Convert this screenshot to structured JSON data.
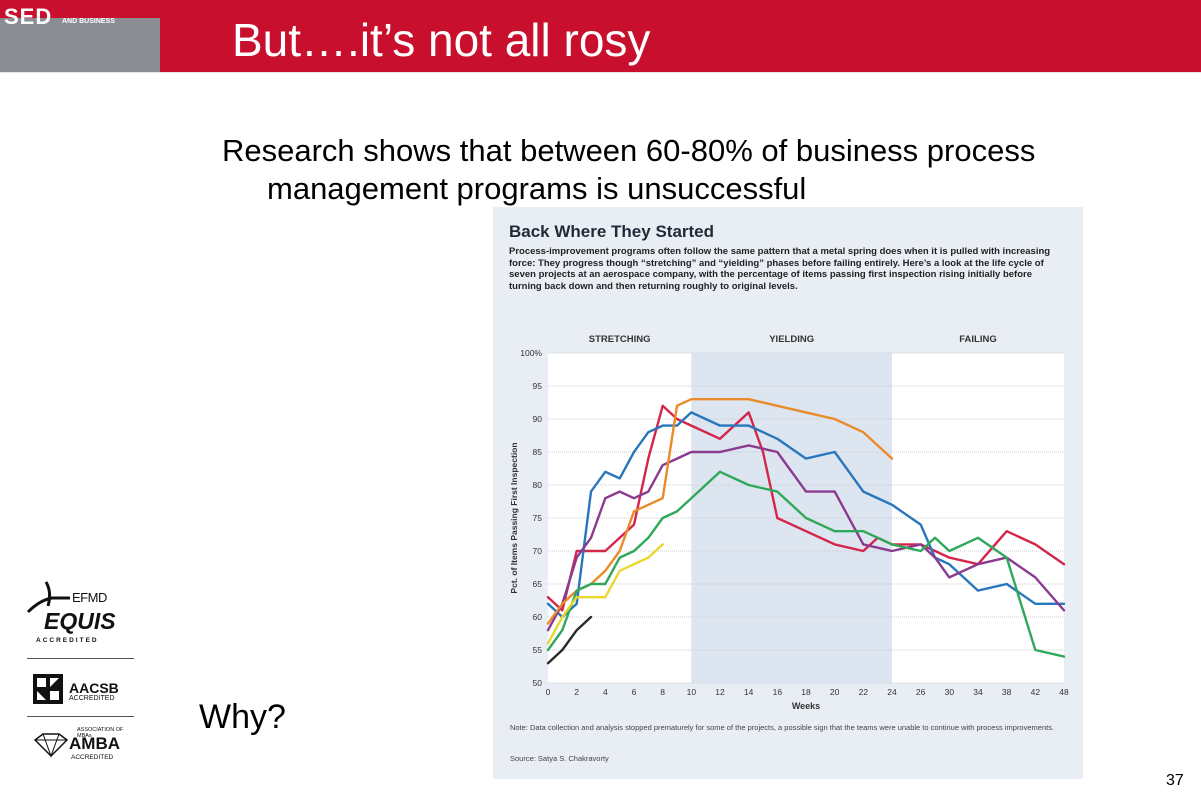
{
  "header": {
    "logo_text": "SED",
    "logo_subtext": "AND BUSINESS",
    "title": "But….it’s not all rosy"
  },
  "body": {
    "line1": "Research shows that between 60-80% of business process",
    "line2": "management programs is unsuccessful",
    "why": "Why?"
  },
  "page_number": "37",
  "accreditations": {
    "efmd_brand": "EFMD",
    "equis": "EQUIS",
    "equis_accredited": "ACCREDITED",
    "aacsb": "AACSB",
    "aacsb_accredited": "ACCREDITED",
    "amba_association": "ASSOCIATION OF MBAs",
    "amba": "AMBA",
    "amba_accredited": "ACCREDITED"
  },
  "chart_data": {
    "type": "line",
    "title": "Back Where They Started",
    "subtitle": "Process-improvement programs often follow the same pattern that a metal spring does when it is pulled with increasing force: They progress though “stretching” and “yielding” phases before failing entirely. Here’s a look at the life cycle of seven projects at an aerospace company, with the percentage of items passing first inspection rising initially before turning back down and then returning roughly to original levels.",
    "xlabel": "Weeks",
    "ylabel": "Pct. of Items Passing First Inspection",
    "x_ticks": [
      0,
      2,
      4,
      6,
      8,
      10,
      12,
      14,
      16,
      18,
      20,
      22,
      24,
      26,
      30,
      34,
      38,
      42,
      48
    ],
    "y_ticks": [
      50,
      55,
      60,
      65,
      70,
      75,
      80,
      85,
      90,
      95,
      100
    ],
    "y_tick_labels": [
      "50",
      "55",
      "60",
      "65",
      "70",
      "75",
      "80",
      "85",
      "90",
      "95",
      "100%"
    ],
    "ylim": [
      50,
      100
    ],
    "phases": [
      {
        "label": "STRETCHING",
        "x_start": 0,
        "x_end": 10,
        "shaded": false
      },
      {
        "label": "YIELDING",
        "x_start": 10,
        "x_end": 24,
        "shaded": true
      },
      {
        "label": "FAILING",
        "x_start": 24,
        "x_end": 48,
        "shaded": false
      }
    ],
    "grid": true,
    "series": [
      {
        "color": "#d4254b",
        "x": [
          0,
          1,
          2,
          3,
          4,
          5,
          6,
          7,
          8,
          9,
          10,
          12,
          14,
          15,
          16,
          18,
          20,
          22,
          23,
          24,
          26,
          30,
          34,
          38,
          42,
          48
        ],
        "y": [
          63,
          61,
          70,
          70,
          70,
          72,
          74,
          84,
          92,
          90,
          89,
          87,
          91,
          85,
          75,
          73,
          71,
          70,
          72,
          71,
          71,
          69,
          68,
          73,
          71,
          68
        ]
      },
      {
        "color": "#2876bd",
        "x": [
          0,
          1,
          2,
          3,
          4,
          5,
          6,
          7,
          8,
          9,
          10,
          12,
          14,
          16,
          18,
          20,
          22,
          24,
          26,
          28,
          30,
          34,
          38,
          42,
          48
        ],
        "y": [
          62,
          60,
          62,
          79,
          82,
          81,
          85,
          88,
          89,
          89,
          91,
          89,
          89,
          87,
          84,
          85,
          79,
          77,
          74,
          69,
          68,
          64,
          65,
          62,
          62
        ]
      },
      {
        "color": "#8a3a8f",
        "x": [
          0,
          1,
          2,
          3,
          4,
          5,
          6,
          7,
          8,
          9,
          10,
          12,
          14,
          16,
          18,
          20,
          22,
          24,
          26,
          28,
          30,
          34,
          38,
          42,
          48
        ],
        "y": [
          58,
          62,
          69,
          72,
          78,
          79,
          78,
          79,
          83,
          84,
          85,
          85,
          86,
          85,
          79,
          79,
          71,
          70,
          71,
          69,
          66,
          68,
          69,
          66,
          61
        ]
      },
      {
        "color": "#e98a2b",
        "x": [
          0,
          1,
          2,
          3,
          4,
          5,
          6,
          7,
          8,
          9,
          10,
          12,
          14,
          16,
          18,
          20,
          22,
          24
        ],
        "y": [
          59,
          62,
          64,
          65,
          67,
          70,
          76,
          77,
          78,
          92,
          93,
          93,
          93,
          92,
          91,
          90,
          88,
          84
        ]
      },
      {
        "color": "#2fa85a",
        "x": [
          0,
          1,
          2,
          3,
          4,
          5,
          6,
          7,
          8,
          9,
          10,
          12,
          14,
          16,
          18,
          20,
          22,
          24,
          26,
          28,
          30,
          34,
          38,
          42,
          48
        ],
        "y": [
          55,
          58,
          64,
          65,
          65,
          69,
          70,
          72,
          75,
          76,
          78,
          82,
          80,
          79,
          75,
          73,
          73,
          71,
          70,
          72,
          70,
          72,
          69,
          55,
          54
        ]
      },
      {
        "color": "#e8d82e",
        "x": [
          0,
          1,
          2,
          3,
          4,
          5,
          6,
          7,
          8
        ],
        "y": [
          56,
          60,
          63,
          63,
          63,
          67,
          68,
          69,
          71
        ]
      },
      {
        "color": "#2a2a2a",
        "x": [
          0,
          1,
          2,
          3
        ],
        "y": [
          53,
          55,
          58,
          60
        ]
      }
    ],
    "note": "Note: Data collection and analysis stopped prematurely for some of the projects, a possible sign that the teams were unable to continue with process improvements.",
    "source": "Source: Satya S. Chakravorty"
  }
}
